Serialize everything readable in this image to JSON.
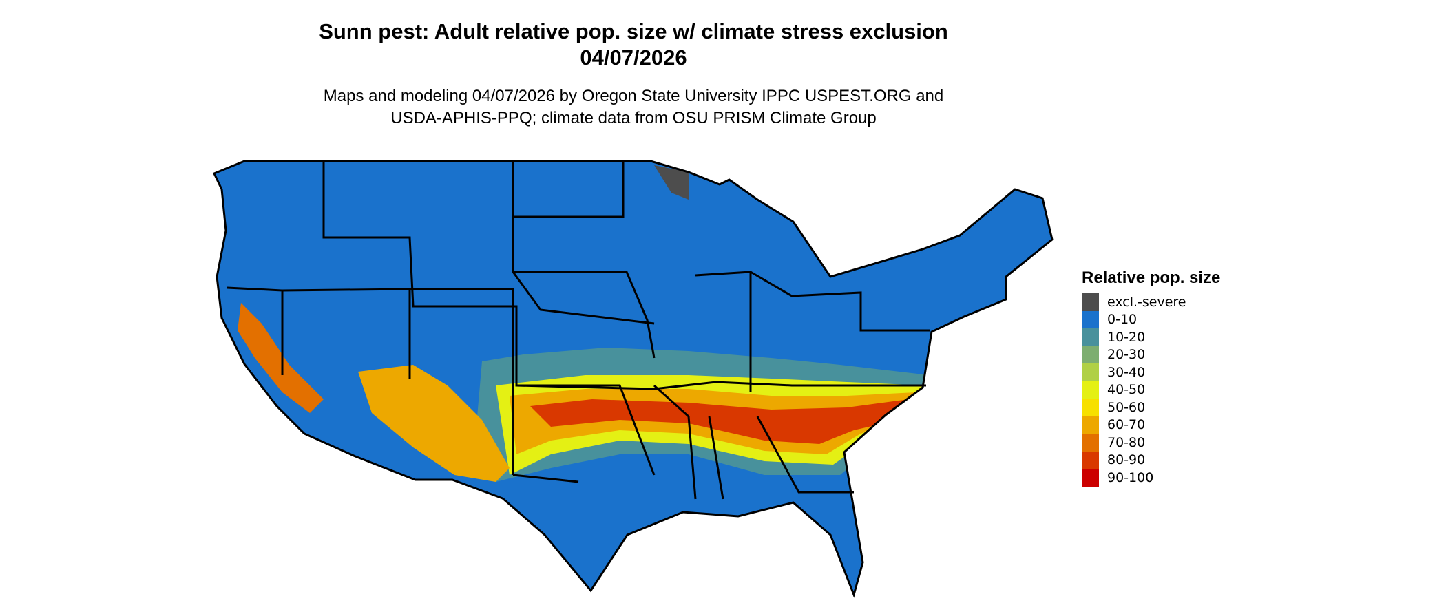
{
  "title": {
    "line1": "Sunn pest: Adult relative pop. size w/ climate stress exclusion",
    "line2": "04/07/2026"
  },
  "subtitle": {
    "line1": "Maps and modeling 04/07/2026 by Oregon State University IPPC USPEST.ORG and",
    "line2": "USDA-APHIS-PPQ; climate data from OSU PRISM Climate Group"
  },
  "legend": {
    "title": "Relative pop. size",
    "items": [
      {
        "label": "excl.-severe",
        "color": "#4d4d4d"
      },
      {
        "label": "0-10",
        "color": "#1a72cc"
      },
      {
        "label": "10-20",
        "color": "#48919c"
      },
      {
        "label": "20-30",
        "color": "#7dae70"
      },
      {
        "label": "30-40",
        "color": "#b0d045"
      },
      {
        "label": "40-50",
        "color": "#e4f014"
      },
      {
        "label": "50-60",
        "color": "#f7e000"
      },
      {
        "label": "60-70",
        "color": "#eda800"
      },
      {
        "label": "70-80",
        "color": "#e37000"
      },
      {
        "label": "80-90",
        "color": "#d93800"
      },
      {
        "label": "90-100",
        "color": "#cc0000"
      }
    ]
  }
}
